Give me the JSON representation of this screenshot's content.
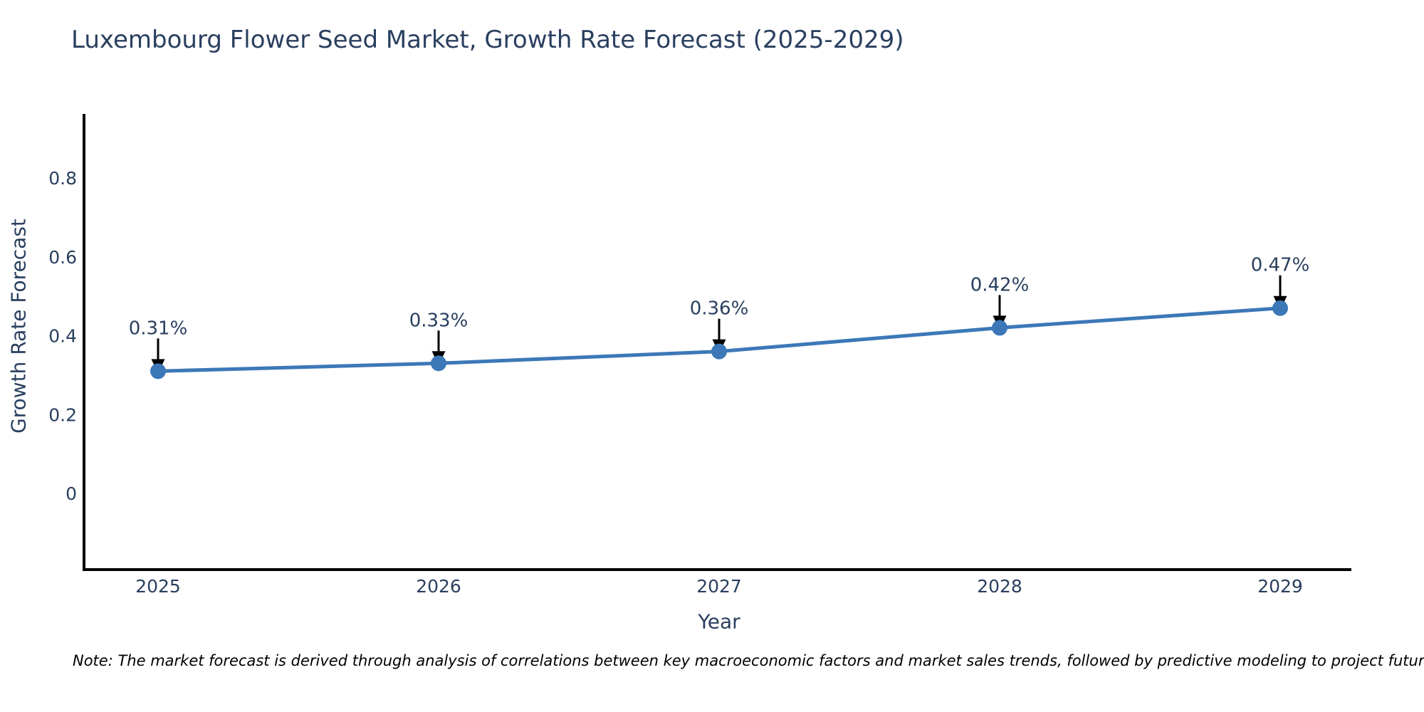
{
  "title": "Luxembourg Flower Seed Market, Growth Rate Forecast (2025-2029)",
  "note": "Note: The market forecast is derived through analysis of correlations between key macroeconomic factors and market sales trends, followed by predictive modeling to project future sales",
  "chart_data": {
    "type": "line",
    "title": "Luxembourg Flower Seed Market, Growth Rate Forecast (2025-2029)",
    "xlabel": "Year",
    "ylabel": "Growth Rate Forecast",
    "categories": [
      "2025",
      "2026",
      "2027",
      "2028",
      "2029"
    ],
    "series": [
      {
        "name": "Growth Rate Forecast",
        "values": [
          0.31,
          0.33,
          0.36,
          0.42,
          0.47
        ]
      }
    ],
    "point_labels": [
      "0.31%",
      "0.33%",
      "0.36%",
      "0.42%",
      "0.47%"
    ],
    "ytick_labels": [
      "0",
      "0.2",
      "0.4",
      "0.6",
      "0.8"
    ],
    "ytick_values": [
      0,
      0.2,
      0.4,
      0.6,
      0.8
    ],
    "ylim": [
      -0.2,
      0.96
    ],
    "grid": false,
    "legend_position": "none",
    "colors": {
      "line": "#3c78b8",
      "marker": "#3c78b8",
      "axis": "#000000",
      "text": "#2a3f5f",
      "annotation_arrow": "#000000",
      "background": "#ffffff"
    }
  }
}
